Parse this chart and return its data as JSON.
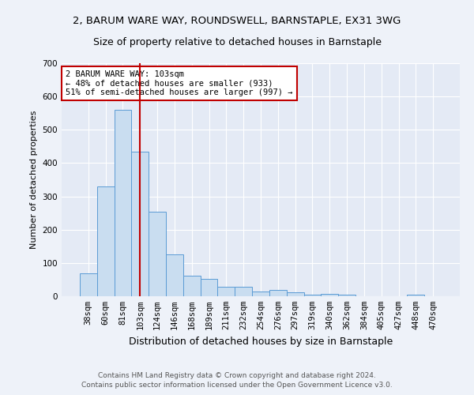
{
  "title": "2, BARUM WARE WAY, ROUNDSWELL, BARNSTAPLE, EX31 3WG",
  "subtitle": "Size of property relative to detached houses in Barnstaple",
  "xlabel": "Distribution of detached houses by size in Barnstaple",
  "ylabel": "Number of detached properties",
  "categories": [
    "38sqm",
    "60sqm",
    "81sqm",
    "103sqm",
    "124sqm",
    "146sqm",
    "168sqm",
    "189sqm",
    "211sqm",
    "232sqm",
    "254sqm",
    "276sqm",
    "297sqm",
    "319sqm",
    "340sqm",
    "362sqm",
    "384sqm",
    "405sqm",
    "427sqm",
    "448sqm",
    "470sqm"
  ],
  "values": [
    70,
    330,
    560,
    435,
    255,
    125,
    62,
    52,
    28,
    28,
    15,
    18,
    11,
    4,
    7,
    4,
    0,
    0,
    0,
    5,
    0
  ],
  "bar_color": "#c9ddf0",
  "bar_edge_color": "#5b9bd5",
  "highlight_index": 3,
  "highlight_color": "#c00000",
  "ylim": [
    0,
    700
  ],
  "yticks": [
    0,
    100,
    200,
    300,
    400,
    500,
    600,
    700
  ],
  "annotation_text": "2 BARUM WARE WAY: 103sqm\n← 48% of detached houses are smaller (933)\n51% of semi-detached houses are larger (997) →",
  "annotation_box_color": "#ffffff",
  "annotation_box_edge_color": "#c00000",
  "footer_line1": "Contains HM Land Registry data © Crown copyright and database right 2024.",
  "footer_line2": "Contains public sector information licensed under the Open Government Licence v3.0.",
  "title_fontsize": 9.5,
  "subtitle_fontsize": 9,
  "xlabel_fontsize": 9,
  "ylabel_fontsize": 8,
  "tick_fontsize": 7.5,
  "annotation_fontsize": 7.5,
  "footer_fontsize": 6.5,
  "background_color": "#eef2f9",
  "plot_background_color": "#e4eaf5"
}
